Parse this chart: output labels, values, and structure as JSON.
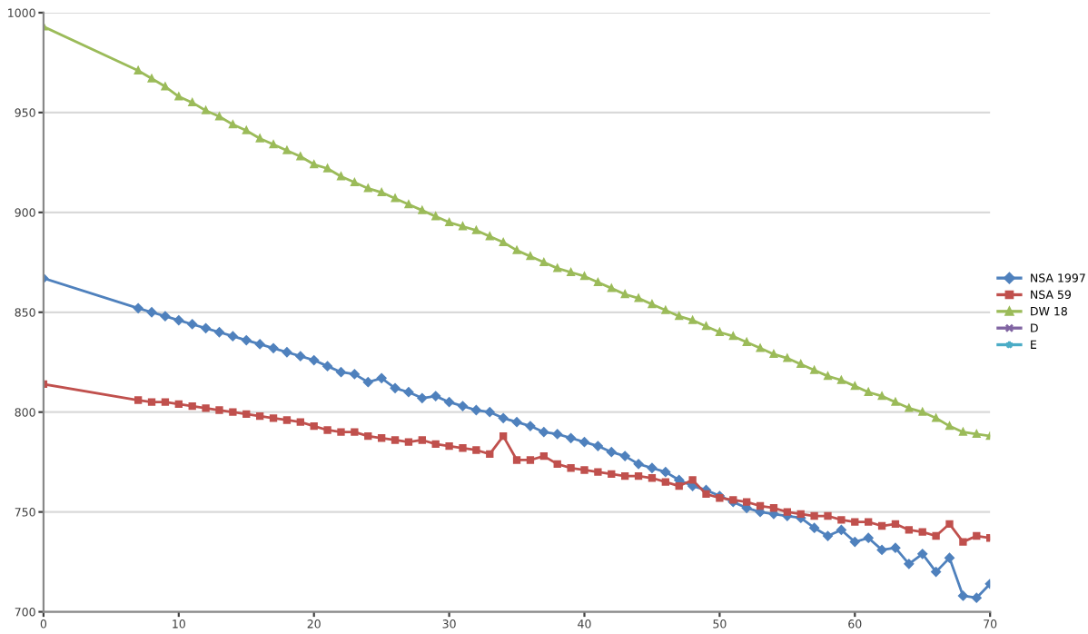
{
  "chart_data": {
    "type": "line",
    "x": [
      0,
      7,
      8,
      9,
      10,
      11,
      12,
      13,
      14,
      15,
      16,
      17,
      18,
      19,
      20,
      21,
      22,
      23,
      24,
      25,
      26,
      27,
      28,
      29,
      30,
      31,
      32,
      33,
      34,
      35,
      36,
      37,
      38,
      39,
      40,
      41,
      42,
      43,
      44,
      45,
      46,
      47,
      48,
      49,
      50,
      51,
      52,
      53,
      54,
      55,
      56,
      57,
      58,
      59,
      60,
      61,
      62,
      63,
      64,
      65,
      66,
      67,
      68,
      69,
      70
    ],
    "series": [
      {
        "name": "NSA 1997",
        "color": "#4f81bd",
        "marker": "diamond",
        "values": [
          867,
          852,
          850,
          848,
          846,
          844,
          842,
          840,
          838,
          836,
          834,
          832,
          830,
          828,
          826,
          823,
          820,
          819,
          815,
          817,
          812,
          810,
          807,
          808,
          805,
          803,
          801,
          800,
          797,
          795,
          793,
          790,
          789,
          787,
          785,
          783,
          780,
          778,
          774,
          772,
          770,
          766,
          763,
          761,
          758,
          755,
          752,
          750,
          749,
          748,
          747,
          742,
          738,
          741,
          735,
          737,
          731,
          732,
          724,
          729,
          720,
          727,
          708,
          707,
          714
        ]
      },
      {
        "name": "NSA 59",
        "color": "#c0504d",
        "marker": "square",
        "values": [
          814,
          806,
          805,
          805,
          804,
          803,
          802,
          801,
          800,
          799,
          798,
          797,
          796,
          795,
          793,
          791,
          790,
          790,
          788,
          787,
          786,
          785,
          786,
          784,
          783,
          782,
          781,
          779,
          788,
          776,
          776,
          778,
          774,
          772,
          771,
          770,
          769,
          768,
          768,
          767,
          765,
          763,
          766,
          759,
          757,
          756,
          755,
          753,
          752,
          750,
          749,
          748,
          748,
          746,
          745,
          745,
          743,
          744,
          741,
          740,
          738,
          744,
          735,
          738,
          737
        ]
      },
      {
        "name": "DW 18",
        "color": "#9bbb59",
        "marker": "triangle",
        "values": [
          993,
          971,
          967,
          963,
          958,
          955,
          951,
          948,
          944,
          941,
          937,
          934,
          931,
          928,
          924,
          922,
          918,
          915,
          912,
          910,
          907,
          904,
          901,
          898,
          895,
          893,
          891,
          888,
          885,
          881,
          878,
          875,
          872,
          870,
          868,
          865,
          862,
          859,
          857,
          854,
          851,
          848,
          846,
          843,
          840,
          838,
          835,
          832,
          829,
          827,
          824,
          821,
          818,
          816,
          813,
          810,
          808,
          805,
          802,
          800,
          797,
          793,
          790,
          789,
          788
        ]
      },
      {
        "name": "D",
        "color": "#8064a2",
        "marker": "cross",
        "values": [
          null,
          null,
          null,
          null,
          null,
          null,
          null,
          null,
          null,
          null,
          null,
          null,
          null,
          null,
          null,
          null,
          null,
          null,
          null,
          null,
          null,
          null,
          null,
          null,
          null,
          null,
          null,
          null,
          null,
          null,
          null,
          null,
          null,
          null,
          null,
          null,
          null,
          null,
          null,
          null,
          null,
          null,
          null,
          null,
          null,
          null,
          null,
          null,
          null,
          null,
          null,
          null,
          null,
          null,
          null,
          null,
          null,
          null,
          null,
          null,
          null,
          null,
          null,
          null,
          null
        ]
      },
      {
        "name": "E",
        "color": "#4bacc6",
        "marker": "star",
        "values": [
          null,
          null,
          null,
          null,
          null,
          null,
          null,
          null,
          null,
          null,
          null,
          null,
          null,
          null,
          null,
          null,
          null,
          null,
          null,
          null,
          null,
          null,
          null,
          null,
          null,
          null,
          null,
          null,
          null,
          null,
          null,
          null,
          null,
          null,
          null,
          null,
          null,
          null,
          null,
          null,
          null,
          null,
          null,
          null,
          null,
          null,
          null,
          null,
          null,
          null,
          null,
          null,
          null,
          null,
          null,
          null,
          null,
          null,
          null,
          null,
          null,
          null,
          null,
          null,
          null
        ]
      }
    ],
    "xlim": [
      0,
      70
    ],
    "xticks": [
      0,
      10,
      20,
      30,
      40,
      50,
      60,
      70
    ],
    "ylim": [
      700,
      1000
    ],
    "yticks": [
      700,
      750,
      800,
      850,
      900,
      950,
      1000
    ],
    "grid": "y",
    "legend": "right",
    "line_style": "solid"
  }
}
